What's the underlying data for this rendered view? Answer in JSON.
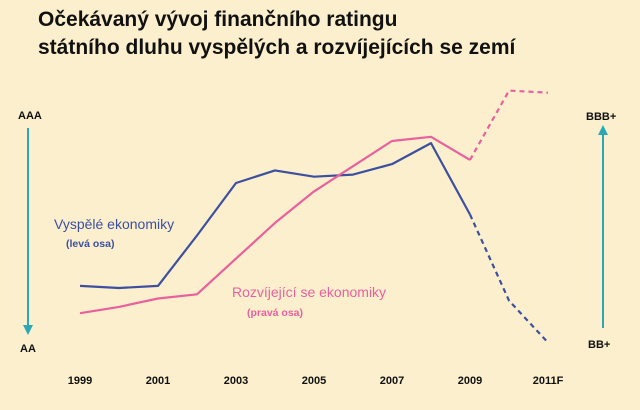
{
  "chart_data": {
    "type": "line",
    "title_lines": [
      "Očekávaný vývoj finančního ratingu",
      "státního dluhu vyspělých a rozvíjejících se zemí"
    ],
    "x_tick_labels": [
      "1999",
      "2001",
      "2003",
      "2005",
      "2007",
      "2009",
      "2011F"
    ],
    "left_axis": {
      "top_label": "AAA",
      "bottom_label": "AA",
      "color": "#2aa9b5"
    },
    "right_axis": {
      "top_label": "BBB+",
      "bottom_label": "BB+",
      "color": "#2aa9b5"
    },
    "grid": false,
    "legend": "inline labels",
    "series": [
      {
        "name": "Vyspělé ekonomiky",
        "note": "(levá osa)",
        "axis": "left",
        "color": "#3d4f9f",
        "x": [
          1999,
          2000,
          2001,
          2002,
          2003,
          2004,
          2005,
          2006,
          2007,
          2008,
          2009,
          2010,
          2011
        ],
        "values": [
          0.21,
          0.2,
          0.21,
          0.45,
          0.7,
          0.76,
          0.73,
          0.74,
          0.79,
          0.89,
          0.55,
          0.14,
          -0.06
        ],
        "forecast_from": 2009
      },
      {
        "name": "Rozvíjející se ekonomiky",
        "note": "(pravá osa)",
        "axis": "right",
        "color": "#e8619e",
        "x": [
          1999,
          2000,
          2001,
          2002,
          2003,
          2004,
          2005,
          2006,
          2007,
          2008,
          2009,
          2010,
          2011
        ],
        "values": [
          0.08,
          0.11,
          0.15,
          0.17,
          0.34,
          0.51,
          0.66,
          0.78,
          0.9,
          0.92,
          0.81,
          1.14,
          1.13
        ],
        "forecast_from": 2009
      }
    ]
  }
}
